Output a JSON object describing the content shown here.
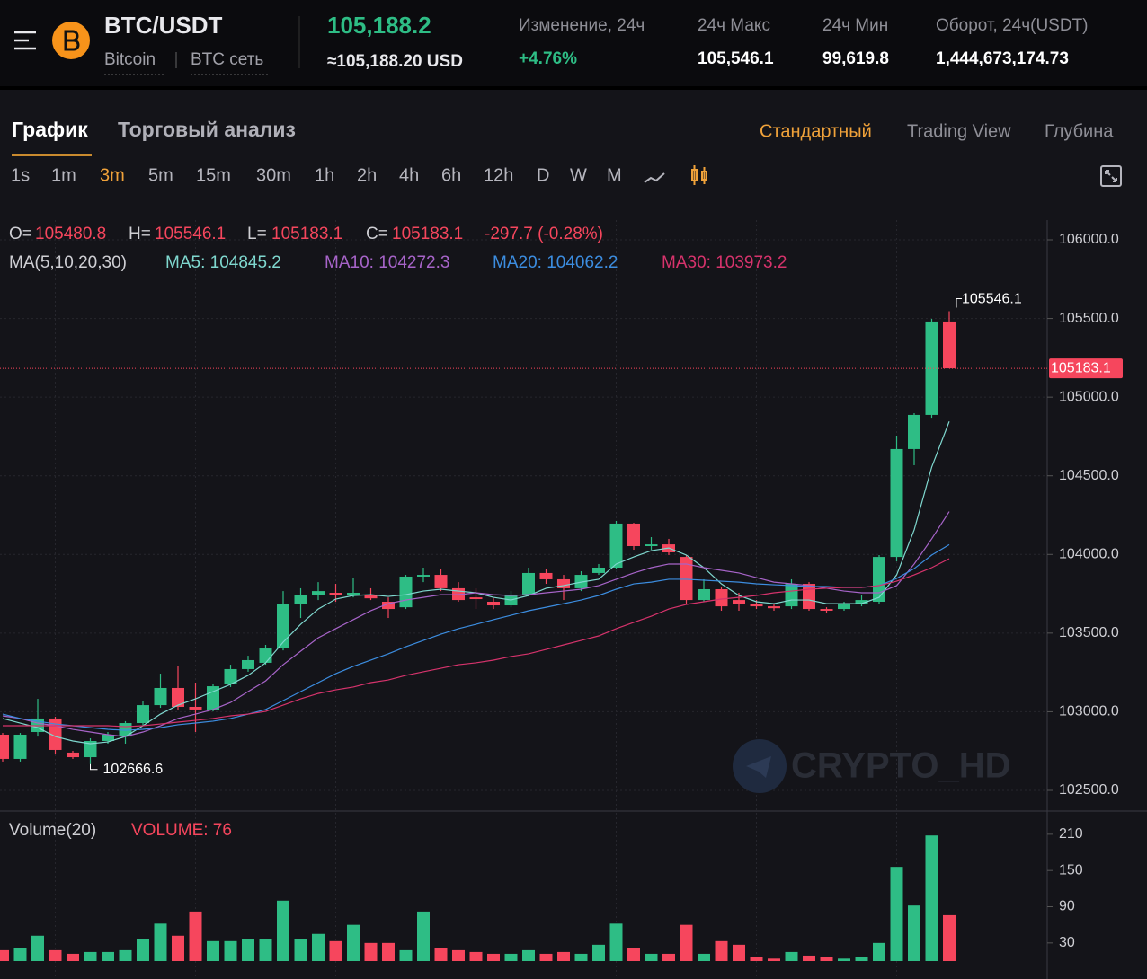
{
  "header": {
    "pair": "BTC/USDT",
    "name": "Bitcoin",
    "network": "BTC сеть",
    "price": "105,188.2",
    "price_usd": "≈105,188.20 USD",
    "stats": [
      {
        "label": "Изменение, 24ч",
        "value": "+4.76%"
      },
      {
        "label": "24ч Макс",
        "value": "105,546.1"
      },
      {
        "label": "24ч Мин",
        "value": "99,619.8"
      },
      {
        "label": "Оборот, 24ч(USDT)",
        "value": "1,444,673,174.73"
      }
    ]
  },
  "tabs": [
    "График",
    "Торговый анализ"
  ],
  "views": [
    "Стандартный",
    "Trading View",
    "Глубина"
  ],
  "intervals": [
    "1s",
    "1m",
    "3m",
    "5m",
    "15m",
    "30m",
    "1h",
    "2h",
    "4h",
    "6h",
    "12h",
    "D",
    "W",
    "M"
  ],
  "chart_data": [
    {
      "type": "candlestick",
      "up_color": "#2ebd85",
      "down_color": "#f6465d",
      "grid": true,
      "open": [
        102854,
        102700,
        102871,
        102957,
        102740,
        102711,
        102814,
        102842,
        102928,
        103042,
        103151,
        103031,
        103014,
        103174,
        103271,
        103311,
        103402,
        103687,
        103739,
        103756,
        103744,
        103744,
        103699,
        103664,
        103859,
        103870,
        103785,
        103727,
        103699,
        103676,
        103744,
        103882,
        103842,
        103785,
        103882,
        103916,
        104196,
        104053,
        104064,
        103984,
        103710,
        103779,
        103710,
        103687,
        103670,
        103670,
        103813,
        103653,
        103653,
        103682,
        103699,
        103984,
        104670,
        104887,
        105480.8
      ],
      "high": [
        102865,
        102865,
        103082,
        102968,
        102751,
        102831,
        102871,
        102940,
        103071,
        103242,
        103288,
        103185,
        103174,
        103299,
        103356,
        103425,
        103767,
        103785,
        103824,
        103813,
        103853,
        103785,
        103727,
        103870,
        103916,
        103910,
        103824,
        103785,
        103721,
        103767,
        103916,
        103910,
        103870,
        103893,
        103939,
        104213,
        104201,
        104110,
        104099,
        103996,
        103842,
        103790,
        103756,
        103710,
        103687,
        103842,
        103824,
        103664,
        103699,
        103744,
        103996,
        104755,
        104898,
        105498,
        105546.1
      ],
      "low": [
        102683,
        102683,
        102842,
        102728,
        102700,
        102666.6,
        102797,
        102797,
        102911,
        103025,
        103014,
        102871,
        103002,
        103157,
        103254,
        103299,
        103390,
        103596,
        103710,
        103699,
        103727,
        103710,
        103596,
        103653,
        103824,
        103767,
        103699,
        103653,
        103653,
        103664,
        103733,
        103813,
        103710,
        103767,
        103870,
        103905,
        104030,
        104030,
        103996,
        103687,
        103699,
        103642,
        103642,
        103653,
        103642,
        103653,
        103642,
        103630,
        103642,
        103670,
        103687,
        103956,
        104567,
        104869,
        105183.1
      ],
      "close": [
        102700,
        102854,
        102957,
        102757,
        102711,
        102814,
        102854,
        102928,
        103042,
        103151,
        103031,
        103014,
        103162,
        103271,
        103328,
        103402,
        103687,
        103739,
        103767,
        103744,
        103756,
        103721,
        103653,
        103859,
        103870,
        103785,
        103710,
        103716,
        103676,
        103744,
        103882,
        103842,
        103785,
        103870,
        103916,
        104196,
        104053,
        104064,
        104013,
        103710,
        103779,
        103670,
        103687,
        103670,
        103658,
        103813,
        103653,
        103642,
        103682,
        103710,
        103984,
        104670,
        104887,
        105480.8,
        105183.1
      ],
      "series": [
        {
          "name": "MA5: 104845.2",
          "color": "#7fd8cf",
          "values": [
            102957,
            102928,
            102899,
            102842,
            102814,
            102797,
            102808,
            102842,
            102911,
            102985,
            103042,
            103082,
            103128,
            103174,
            103231,
            103311,
            103442,
            103556,
            103653,
            103716,
            103739,
            103744,
            103733,
            103744,
            103767,
            103779,
            103767,
            103756,
            103727,
            103710,
            103739,
            103785,
            103802,
            103824,
            103842,
            103939,
            103984,
            104024,
            104041,
            103996,
            103916,
            103813,
            103739,
            103699,
            103687,
            103710,
            103710,
            103687,
            103687,
            103687,
            103727,
            103870,
            104156,
            104555,
            104845.2
          ]
        },
        {
          "name": "MA10: 104272.3",
          "color": "#a764c9",
          "values": [
            102974,
            102957,
            102928,
            102911,
            102888,
            102871,
            102854,
            102842,
            102871,
            102911,
            102957,
            102985,
            103014,
            103059,
            103128,
            103196,
            103299,
            103385,
            103470,
            103528,
            103585,
            103642,
            103687,
            103710,
            103727,
            103744,
            103744,
            103756,
            103744,
            103739,
            103744,
            103756,
            103767,
            103779,
            103802,
            103842,
            103882,
            103916,
            103939,
            103939,
            103916,
            103899,
            103882,
            103853,
            103824,
            103813,
            103802,
            103785,
            103767,
            103756,
            103756,
            103802,
            103939,
            104099,
            104272.3
          ]
        },
        {
          "name": "MA20: 104062.2",
          "color": "#3c8de0",
          "values": [
            102985,
            102957,
            102940,
            102922,
            102911,
            102899,
            102888,
            102882,
            102888,
            102899,
            102917,
            102928,
            102940,
            102957,
            102985,
            103014,
            103071,
            103128,
            103185,
            103242,
            103288,
            103328,
            103368,
            103413,
            103453,
            103493,
            103528,
            103556,
            103585,
            103613,
            103642,
            103664,
            103687,
            103710,
            103739,
            103779,
            103813,
            103824,
            103842,
            103842,
            103836,
            103830,
            103824,
            103813,
            103807,
            103802,
            103796,
            103796,
            103790,
            103790,
            103802,
            103847,
            103910,
            103996,
            104062.2
          ]
        },
        {
          "name": "MA30: 103973.2",
          "color": "#d6336c",
          "values": [
            102911,
            102911,
            102911,
            102911,
            102911,
            102911,
            102911,
            102905,
            102911,
            102922,
            102934,
            102945,
            102957,
            102974,
            102985,
            103002,
            103042,
            103082,
            103116,
            103139,
            103157,
            103185,
            103202,
            103231,
            103254,
            103276,
            103299,
            103311,
            103328,
            103351,
            103368,
            103396,
            103425,
            103453,
            103482,
            103528,
            103568,
            103607,
            103653,
            103682,
            103699,
            103716,
            103727,
            103739,
            103756,
            103767,
            103779,
            103785,
            103790,
            103790,
            103802,
            103830,
            103870,
            103916,
            103973.2
          ]
        }
      ],
      "ma_label": "MA(5,10,20,30)",
      "ohlc_legend": [
        {
          "key": "O=",
          "value": "105480.8"
        },
        {
          "key": "H=",
          "value": "105546.1"
        },
        {
          "key": "L=",
          "value": "105183.1"
        },
        {
          "key": "C=",
          "value": "105183.1"
        }
      ],
      "change": "-297.7 (-0.28%)",
      "max_label": {
        "value": 105546.1,
        "label": "105546.1"
      },
      "min_label": {
        "value": 102666.6,
        "label": "102666.6"
      },
      "last_price": {
        "value": 105183.1,
        "label": "105183.1"
      },
      "watermark": "CRYPTO_HD",
      "ylim": [
        102400,
        106100
      ],
      "yticks": [
        {
          "value": 106000,
          "label": "106000.0"
        },
        {
          "value": 105500,
          "label": "105500.0"
        },
        {
          "value": 105000,
          "label": "105000.0"
        },
        {
          "value": 104500,
          "label": "104500.0"
        },
        {
          "value": 104000,
          "label": "104000.0"
        },
        {
          "value": 103500,
          "label": "103500.0"
        },
        {
          "value": 103000,
          "label": "103000.0"
        },
        {
          "value": 102500,
          "label": "102500.0"
        }
      ]
    },
    {
      "type": "bar",
      "title": "Volume(20)",
      "last_label": "VOLUME: 76",
      "values": [
        18,
        22,
        42,
        18,
        12,
        15,
        15,
        18,
        37,
        62,
        42,
        82,
        33,
        33,
        36,
        37,
        100,
        37,
        45,
        33,
        60,
        30,
        30,
        18,
        82,
        22,
        18,
        15,
        12,
        12,
        18,
        12,
        15,
        12,
        27,
        62,
        22,
        12,
        12,
        60,
        12,
        33,
        27,
        7,
        4,
        15,
        9,
        6,
        4,
        6,
        30,
        156,
        92,
        208,
        76
      ],
      "ylim": [
        0,
        240
      ],
      "yticks": [
        30,
        90,
        150,
        210
      ]
    }
  ]
}
